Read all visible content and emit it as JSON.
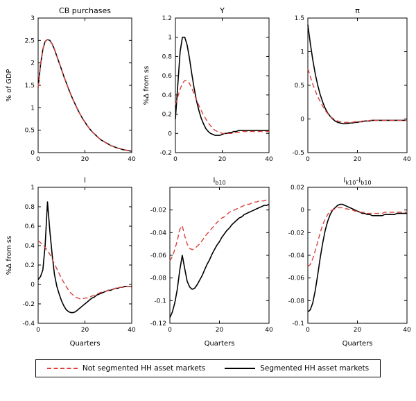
{
  "figure": {
    "background": "#ffffff"
  },
  "legend": {
    "items": [
      {
        "label": "Not segmented HH asset markets",
        "color": "#d9403a",
        "dash": true
      },
      {
        "label": "Segmented HH asset markets",
        "color": "#000000",
        "dash": false
      }
    ]
  },
  "chart_data": [
    {
      "type": "line",
      "title": "CB purchases",
      "xlabel": "",
      "ylabel": "% of GDP",
      "xlim": [
        0,
        40
      ],
      "ylim": [
        0,
        3
      ],
      "xticks": [
        0,
        20,
        40
      ],
      "yticks": [
        0,
        0.5,
        1,
        1.5,
        2,
        2.5,
        3
      ],
      "x_unit": "Quarters",
      "series": [
        {
          "name": "Not segmented HH asset markets",
          "values": [
            1.45,
            1.95,
            2.3,
            2.48,
            2.52,
            2.5,
            2.42,
            2.3,
            2.15,
            2.0,
            1.85,
            1.7,
            1.56,
            1.42,
            1.29,
            1.17,
            1.06,
            0.95,
            0.85,
            0.76,
            0.68,
            0.6,
            0.53,
            0.47,
            0.42,
            0.37,
            0.32,
            0.28,
            0.25,
            0.22,
            0.19,
            0.16,
            0.14,
            0.12,
            0.1,
            0.09,
            0.07,
            0.06,
            0.05,
            0.04,
            0.03
          ]
        },
        {
          "name": "Segmented HH asset markets",
          "values": [
            1.45,
            1.95,
            2.3,
            2.48,
            2.52,
            2.5,
            2.42,
            2.3,
            2.15,
            2.0,
            1.85,
            1.7,
            1.56,
            1.42,
            1.29,
            1.17,
            1.06,
            0.95,
            0.85,
            0.76,
            0.68,
            0.6,
            0.53,
            0.47,
            0.42,
            0.37,
            0.32,
            0.28,
            0.25,
            0.22,
            0.19,
            0.16,
            0.14,
            0.12,
            0.1,
            0.09,
            0.07,
            0.06,
            0.05,
            0.04,
            0.03
          ]
        }
      ]
    },
    {
      "type": "line",
      "title": "Y",
      "xlabel": "",
      "ylabel": "%Δ from ss",
      "xlim": [
        0,
        40
      ],
      "ylim": [
        -0.2,
        1.2
      ],
      "xticks": [
        0,
        20,
        40
      ],
      "yticks": [
        -0.2,
        0,
        0.2,
        0.4,
        0.6,
        0.8,
        1,
        1.2
      ],
      "x_unit": "Quarters",
      "series": [
        {
          "name": "Not segmented HH asset markets",
          "values": [
            0.3,
            0.38,
            0.46,
            0.52,
            0.55,
            0.55,
            0.52,
            0.47,
            0.41,
            0.35,
            0.29,
            0.24,
            0.19,
            0.15,
            0.11,
            0.08,
            0.05,
            0.03,
            0.02,
            0.01,
            0.0,
            0.0,
            0.0,
            0.0,
            0.0,
            0.01,
            0.01,
            0.01,
            0.02,
            0.02,
            0.02,
            0.02,
            0.02,
            0.02,
            0.02,
            0.02,
            0.02,
            0.02,
            0.02,
            0.02,
            0.02
          ]
        },
        {
          "name": "Segmented HH asset markets",
          "values": [
            0.15,
            0.5,
            0.85,
            1.0,
            1.0,
            0.92,
            0.78,
            0.62,
            0.47,
            0.34,
            0.24,
            0.16,
            0.1,
            0.05,
            0.02,
            0.0,
            -0.01,
            -0.02,
            -0.02,
            -0.02,
            -0.01,
            0.0,
            0.0,
            0.01,
            0.01,
            0.02,
            0.02,
            0.03,
            0.03,
            0.03,
            0.03,
            0.03,
            0.03,
            0.03,
            0.03,
            0.03,
            0.03,
            0.03,
            0.03,
            0.03,
            0.03
          ]
        }
      ]
    },
    {
      "type": "line",
      "title": "π",
      "xlabel": "",
      "ylabel": "",
      "xlim": [
        0,
        40
      ],
      "ylim": [
        -0.5,
        1.5
      ],
      "xticks": [
        0,
        20,
        40
      ],
      "yticks": [
        -0.5,
        0,
        0.5,
        1,
        1.5
      ],
      "x_unit": "Quarters",
      "series": [
        {
          "name": "Not segmented HH asset markets",
          "values": [
            0.75,
            0.63,
            0.52,
            0.42,
            0.33,
            0.26,
            0.19,
            0.13,
            0.08,
            0.04,
            0.01,
            -0.01,
            -0.03,
            -0.04,
            -0.05,
            -0.05,
            -0.05,
            -0.05,
            -0.05,
            -0.04,
            -0.04,
            -0.04,
            -0.03,
            -0.03,
            -0.03,
            -0.02,
            -0.02,
            -0.02,
            -0.02,
            -0.02,
            -0.02,
            -0.02,
            -0.02,
            -0.02,
            -0.02,
            -0.02,
            -0.02,
            -0.02,
            -0.02,
            -0.02,
            -0.02
          ]
        },
        {
          "name": "Segmented HH asset markets",
          "values": [
            1.4,
            1.12,
            0.88,
            0.67,
            0.5,
            0.36,
            0.25,
            0.16,
            0.09,
            0.04,
            0.0,
            -0.03,
            -0.05,
            -0.06,
            -0.07,
            -0.07,
            -0.07,
            -0.06,
            -0.06,
            -0.05,
            -0.05,
            -0.04,
            -0.04,
            -0.03,
            -0.03,
            -0.03,
            -0.02,
            -0.02,
            -0.02,
            -0.02,
            -0.02,
            -0.02,
            -0.02,
            -0.02,
            -0.02,
            -0.02,
            -0.02,
            -0.02,
            -0.02,
            -0.02,
            -0.02
          ]
        }
      ]
    },
    {
      "type": "line",
      "title": "i",
      "xlabel": "Quarters",
      "ylabel": "%Δ from ss",
      "xlim": [
        0,
        40
      ],
      "ylim": [
        -0.4,
        1
      ],
      "xticks": [
        0,
        20,
        40
      ],
      "yticks": [
        -0.4,
        -0.2,
        0,
        0.2,
        0.4,
        0.6,
        0.8,
        1
      ],
      "x_unit": "Quarters",
      "series": [
        {
          "name": "Not segmented HH asset markets",
          "values": [
            0.45,
            0.43,
            0.41,
            0.38,
            0.35,
            0.31,
            0.26,
            0.21,
            0.16,
            0.11,
            0.06,
            0.02,
            -0.02,
            -0.06,
            -0.09,
            -0.11,
            -0.13,
            -0.14,
            -0.15,
            -0.15,
            -0.14,
            -0.14,
            -0.13,
            -0.12,
            -0.11,
            -0.1,
            -0.09,
            -0.08,
            -0.07,
            -0.07,
            -0.06,
            -0.05,
            -0.05,
            -0.04,
            -0.04,
            -0.03,
            -0.03,
            -0.03,
            -0.02,
            -0.02,
            -0.02
          ]
        },
        {
          "name": "Segmented HH asset markets",
          "values": [
            0.05,
            0.08,
            0.15,
            0.4,
            0.85,
            0.55,
            0.3,
            0.1,
            -0.02,
            -0.1,
            -0.17,
            -0.22,
            -0.26,
            -0.28,
            -0.29,
            -0.29,
            -0.28,
            -0.26,
            -0.24,
            -0.22,
            -0.2,
            -0.18,
            -0.16,
            -0.14,
            -0.13,
            -0.11,
            -0.1,
            -0.09,
            -0.08,
            -0.07,
            -0.06,
            -0.06,
            -0.05,
            -0.04,
            -0.04,
            -0.03,
            -0.03,
            -0.02,
            -0.02,
            -0.02,
            -0.02
          ]
        }
      ]
    },
    {
      "type": "line",
      "title": "i_{b10}",
      "xlabel": "Quarters",
      "ylabel": "",
      "xlim": [
        0,
        40
      ],
      "ylim": [
        -0.12,
        0
      ],
      "xticks": [
        0,
        20,
        40
      ],
      "yticks": [
        -0.12,
        -0.1,
        -0.08,
        -0.06,
        -0.04,
        -0.02
      ],
      "x_unit": "Quarters",
      "series": [
        {
          "name": "Not segmented HH asset markets",
          "values": [
            -0.065,
            -0.061,
            -0.055,
            -0.047,
            -0.037,
            -0.034,
            -0.043,
            -0.05,
            -0.054,
            -0.055,
            -0.054,
            -0.052,
            -0.05,
            -0.047,
            -0.044,
            -0.041,
            -0.039,
            -0.036,
            -0.034,
            -0.031,
            -0.029,
            -0.027,
            -0.026,
            -0.024,
            -0.022,
            -0.021,
            -0.02,
            -0.019,
            -0.018,
            -0.017,
            -0.016,
            -0.015,
            -0.015,
            -0.014,
            -0.013,
            -0.013,
            -0.012,
            -0.012,
            -0.012,
            -0.011,
            -0.011
          ]
        },
        {
          "name": "Segmented HH asset markets",
          "values": [
            -0.115,
            -0.11,
            -0.102,
            -0.09,
            -0.073,
            -0.06,
            -0.072,
            -0.083,
            -0.088,
            -0.09,
            -0.089,
            -0.086,
            -0.082,
            -0.078,
            -0.073,
            -0.068,
            -0.064,
            -0.059,
            -0.055,
            -0.051,
            -0.048,
            -0.044,
            -0.041,
            -0.038,
            -0.036,
            -0.033,
            -0.031,
            -0.029,
            -0.027,
            -0.026,
            -0.024,
            -0.023,
            -0.022,
            -0.021,
            -0.02,
            -0.019,
            -0.018,
            -0.017,
            -0.016,
            -0.016,
            -0.015
          ]
        }
      ]
    },
    {
      "type": "line",
      "title": "i_{k10}-i_{b10}",
      "xlabel": "Quarters",
      "ylabel": "",
      "xlim": [
        0,
        40
      ],
      "ylim": [
        -0.1,
        0.02
      ],
      "xticks": [
        0,
        20,
        40
      ],
      "yticks": [
        -0.1,
        -0.08,
        -0.06,
        -0.04,
        -0.02,
        0,
        0.02
      ],
      "x_unit": "Quarters",
      "series": [
        {
          "name": "Not segmented HH asset markets",
          "values": [
            -0.05,
            -0.048,
            -0.043,
            -0.036,
            -0.028,
            -0.02,
            -0.013,
            -0.008,
            -0.004,
            -0.001,
            0.0,
            0.001,
            0.002,
            0.002,
            0.002,
            0.001,
            0.001,
            0.0,
            0.0,
            -0.001,
            -0.001,
            -0.002,
            -0.002,
            -0.002,
            -0.003,
            -0.003,
            -0.003,
            -0.003,
            -0.003,
            -0.003,
            -0.003,
            -0.002,
            -0.002,
            -0.002,
            -0.002,
            -0.002,
            -0.002,
            -0.002,
            -0.002,
            -0.002,
            -0.002
          ]
        },
        {
          "name": "Segmented HH asset markets",
          "values": [
            -0.09,
            -0.088,
            -0.082,
            -0.071,
            -0.057,
            -0.042,
            -0.029,
            -0.018,
            -0.01,
            -0.004,
            0.0,
            0.002,
            0.004,
            0.005,
            0.005,
            0.004,
            0.003,
            0.002,
            0.001,
            0.0,
            -0.001,
            -0.002,
            -0.003,
            -0.003,
            -0.004,
            -0.004,
            -0.005,
            -0.005,
            -0.005,
            -0.005,
            -0.005,
            -0.004,
            -0.004,
            -0.004,
            -0.004,
            -0.004,
            -0.003,
            -0.003,
            -0.003,
            -0.003,
            -0.003
          ]
        }
      ]
    }
  ]
}
